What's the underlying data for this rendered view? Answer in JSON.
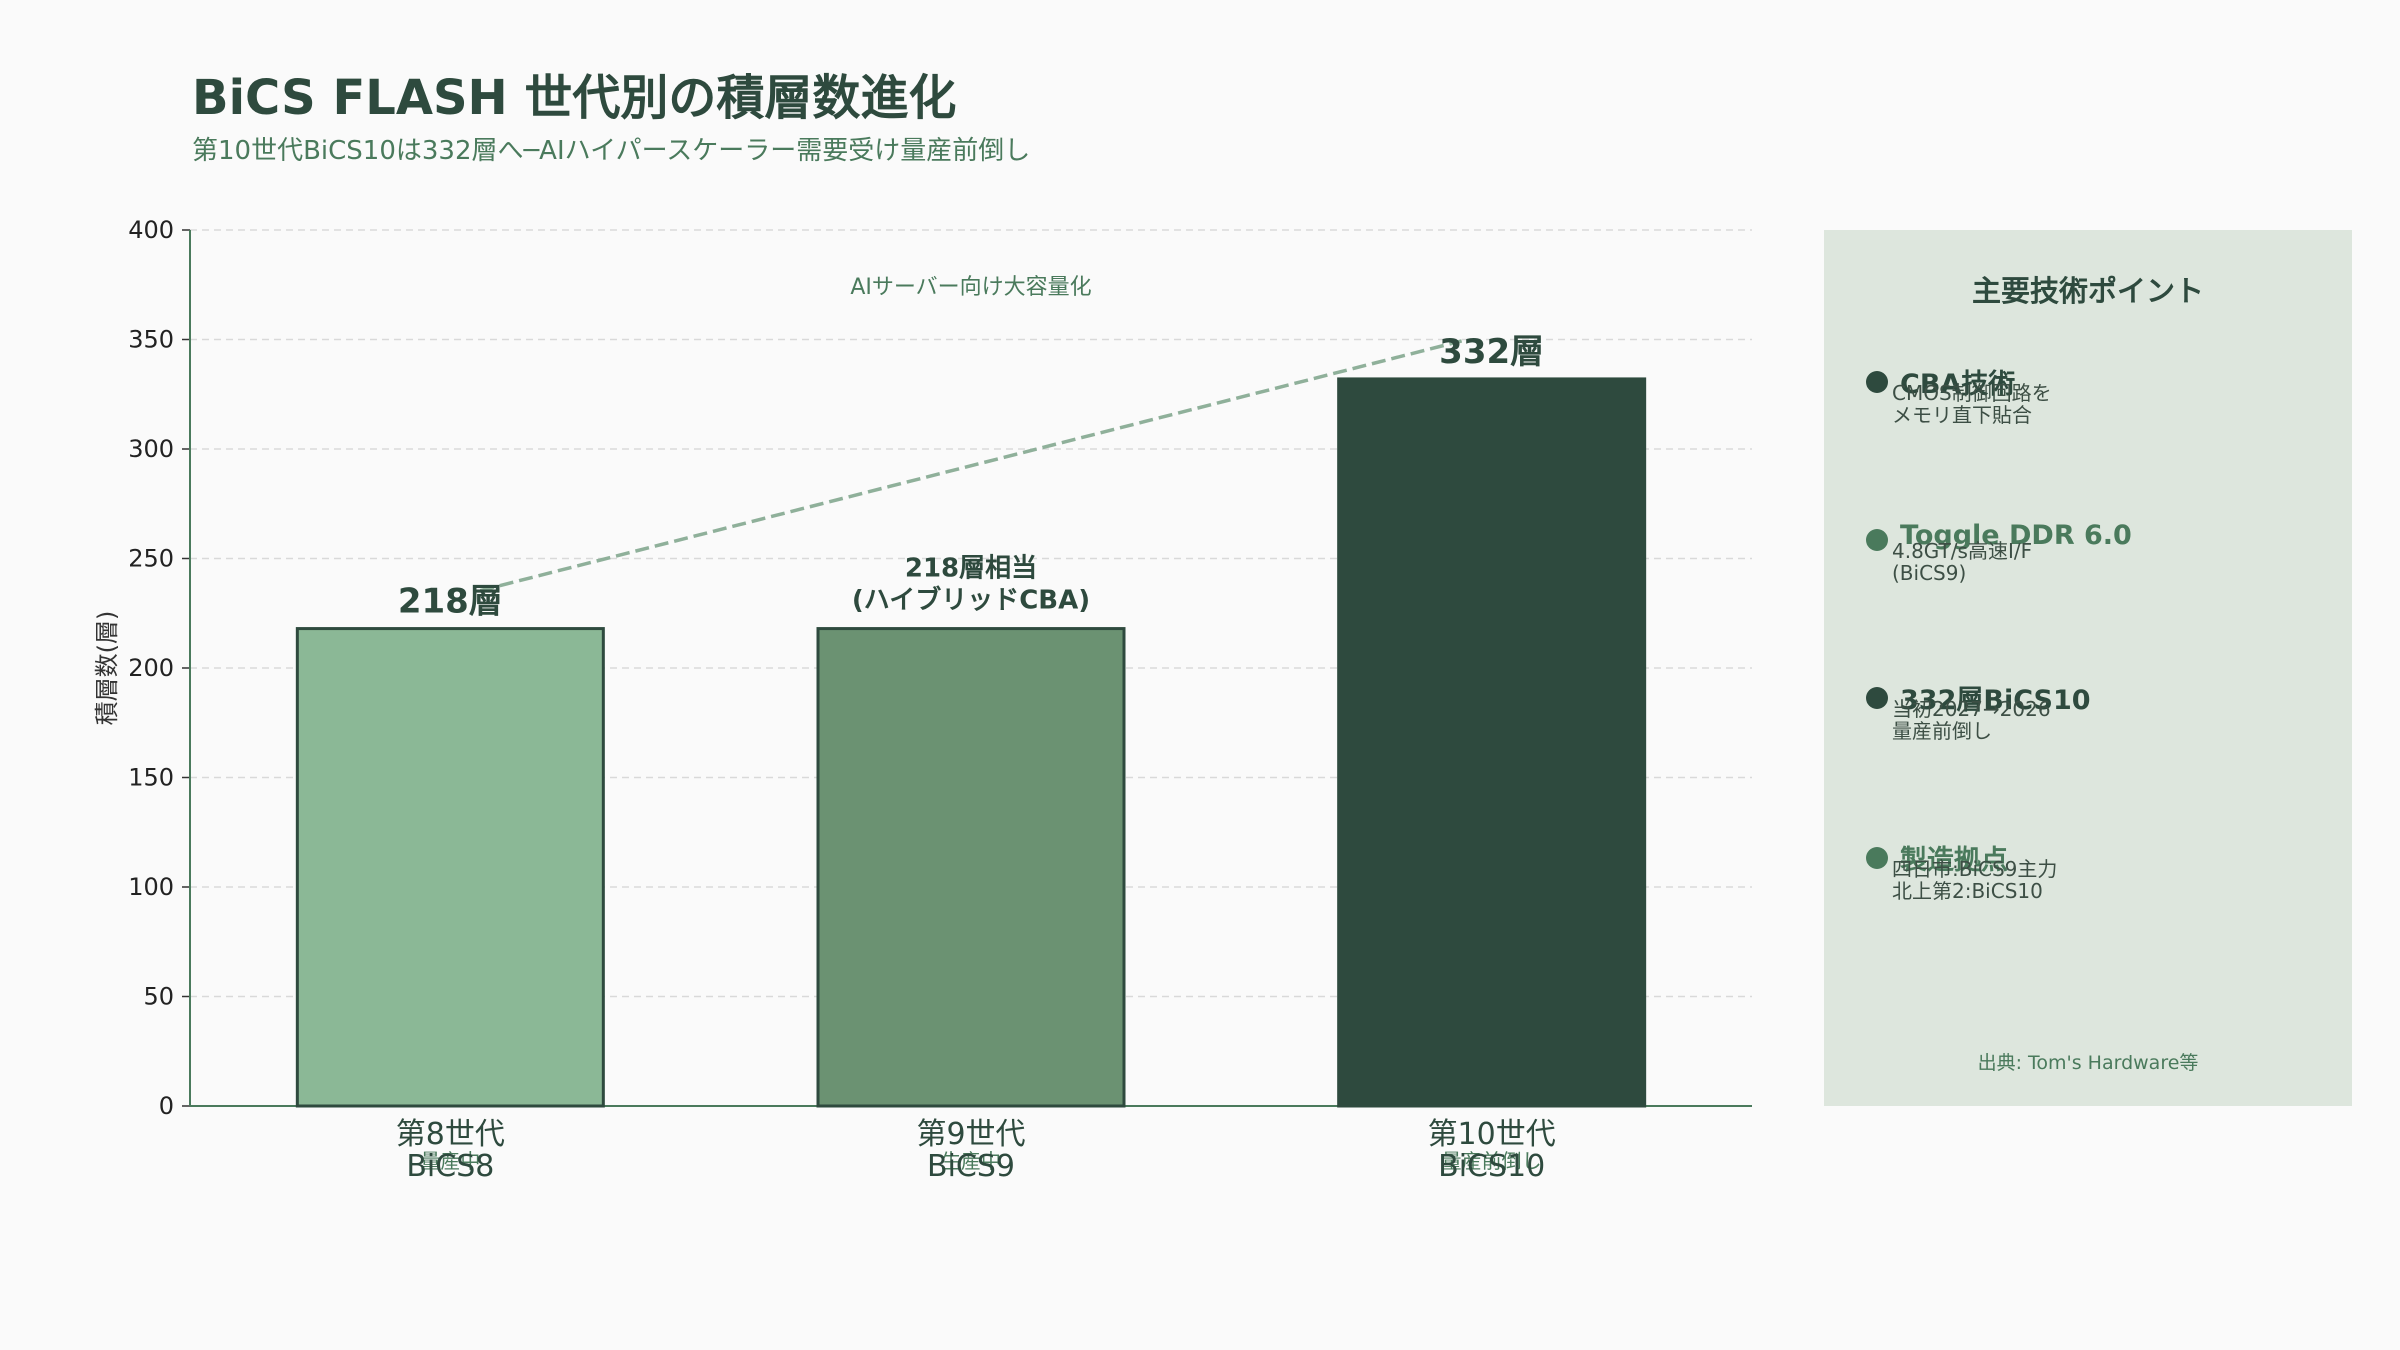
{
  "title": "BiCS FLASH 世代別の積層数進化",
  "subtitle": "第10世代BiCS10は332層へ─AIハイパースケーラー需要受け量産前倒し",
  "colors": {
    "title": "#2e4a3e",
    "accent": "#4a7a5c",
    "bar_light": "#8bb896",
    "bar_mid": "#6b9272",
    "bar_dark": "#2e4a3e",
    "panel_bg": "#dde6dd",
    "trend_line": "#8fb09a"
  },
  "chart_data": {
    "type": "bar",
    "ylabel": "積層数(層)",
    "ylim": [
      0,
      400
    ],
    "yticks": [
      0,
      50,
      100,
      150,
      200,
      250,
      300,
      350,
      400
    ],
    "grid": true,
    "categories": [
      {
        "line1": "第8世代",
        "line2": "BiCS8",
        "status": "量産中"
      },
      {
        "line1": "第9世代",
        "line2": "BiCS9",
        "status": "生産中"
      },
      {
        "line1": "第10世代",
        "line2": "BiCS10",
        "status": "量産前倒し"
      }
    ],
    "values": [
      218,
      218,
      332
    ],
    "bar_colors": [
      "#8bb896",
      "#6b9272",
      "#2e4a3e"
    ],
    "value_labels": [
      {
        "lines": [
          "218層"
        ],
        "size": "large"
      },
      {
        "lines": [
          "218層相当",
          "(ハイブリッドCBA)"
        ],
        "size": "small"
      },
      {
        "lines": [
          "332層"
        ],
        "size": "large"
      }
    ],
    "trend": {
      "from_index": 0,
      "to_index": 2,
      "style": "dashed"
    },
    "annotation": "AIサーバー向け大容量化"
  },
  "panel": {
    "title": "主要技術ポイント",
    "points": [
      {
        "title": "CBA技術",
        "desc": "CMOS制御回路を\nメモリ直下貼合",
        "color": "#2e4a3e"
      },
      {
        "title": "Toggle DDR 6.0",
        "desc": "4.8GT/s高速I/F\n(BiCS9)",
        "color": "#4a7a5c"
      },
      {
        "title": "332層BiCS10",
        "desc": "当初2027→2026\n量産前倒し",
        "color": "#2e4a3e"
      },
      {
        "title": "製造拠点",
        "desc": "四日市:BiCS9主力\n北上第2:BiCS10",
        "color": "#4a7a5c"
      }
    ],
    "source": "出典: Tom's Hardware等"
  }
}
